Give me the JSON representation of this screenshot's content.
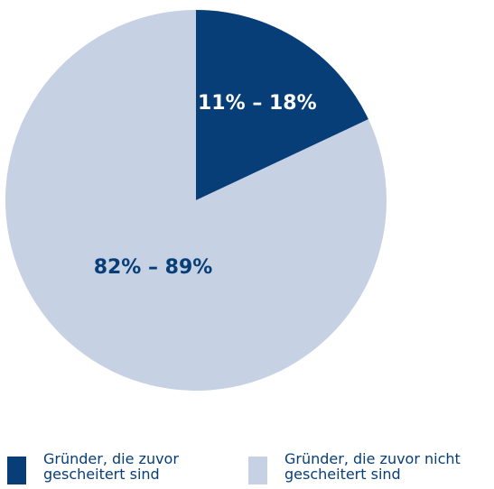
{
  "chart_data": {
    "type": "pie",
    "categories": [
      "Gründer, die zuvor gescheitert sind",
      "Gründer, die zuvor nicht gescheitert sind"
    ],
    "values": [
      18,
      82
    ],
    "value_labels": [
      "11% – 18%",
      "82% – 89%"
    ],
    "colors": [
      "#073e78",
      "#c6d1e4"
    ]
  }
}
